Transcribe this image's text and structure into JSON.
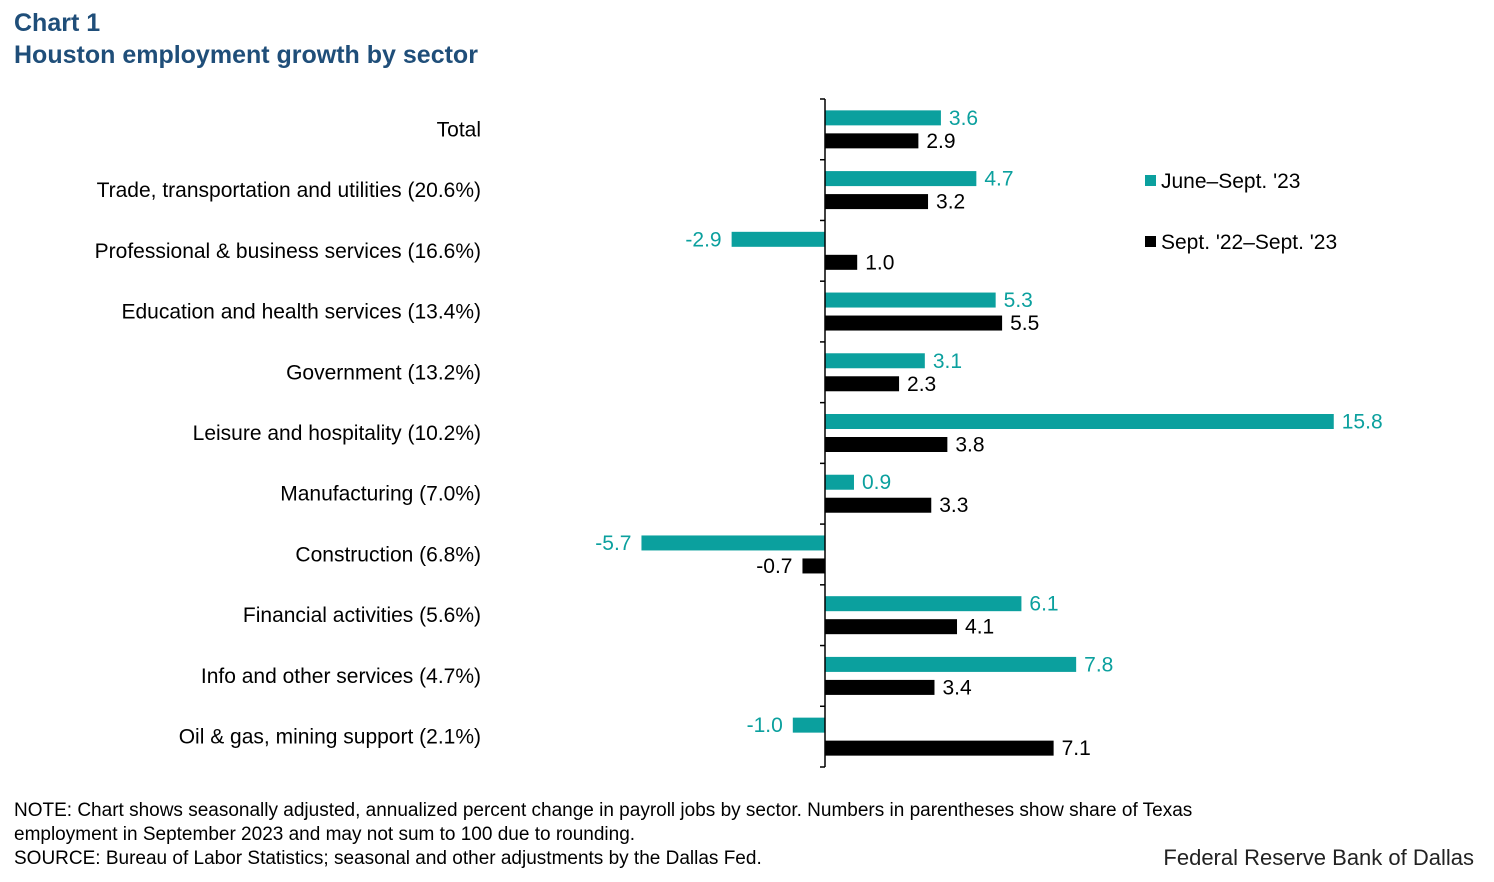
{
  "header": {
    "chart_label": "Chart 1",
    "title": "Houston employment growth by sector"
  },
  "chart_data": {
    "type": "bar",
    "orientation": "horizontal",
    "title": "Houston employment growth by sector",
    "xlabel": "",
    "ylabel": "",
    "xlim": [
      -6.0,
      16.5
    ],
    "grid": false,
    "legend_position": "right",
    "categories": [
      "Total",
      "Trade, transportation and utilities (20.6%)",
      "Professional & business services (16.6%)",
      "Education and health services (13.4%)",
      "Government (13.2%)",
      "Leisure and hospitality (10.2%)",
      "Manufacturing (7.0%)",
      "Construction (6.8%)",
      "Financial activities (5.6%)",
      "Info and other services (4.7%)",
      "Oil & gas, mining support (2.1%)"
    ],
    "series": [
      {
        "name": "June–Sept. '23",
        "color": "#0ba09e",
        "values": [
          3.6,
          4.7,
          -2.9,
          5.3,
          3.1,
          15.8,
          0.9,
          -5.7,
          6.1,
          7.8,
          -1.0
        ],
        "labels": [
          "3.6",
          "4.7",
          "-2.9",
          "5.3",
          "3.1",
          "15.8",
          "0.9",
          "-5.7",
          "6.1",
          "7.8",
          "-1.0"
        ]
      },
      {
        "name": "Sept. '22–Sept. '23",
        "color": "#000000",
        "values": [
          2.9,
          3.2,
          1.0,
          5.5,
          2.3,
          3.8,
          3.3,
          -0.7,
          4.1,
          3.4,
          7.1
        ],
        "labels": [
          "2.9",
          "3.2",
          "1.0",
          "5.5",
          "2.3",
          "3.8",
          "3.3",
          "-0.7",
          "4.1",
          "3.4",
          "7.1"
        ]
      }
    ]
  },
  "footer": {
    "note_line1": "NOTE: Chart shows seasonally adjusted, annualized  percent change  in payroll jobs by sector. Numbers in parentheses  show share of Texas",
    "note_line2": "employment  in September 2023 and may not sum to 100 due to rounding.",
    "source": "SOURCE: Bureau of Labor Statistics; seasonal and other adjustments  by the Dallas Fed.",
    "credit": "Federal Reserve Bank of Dallas"
  }
}
